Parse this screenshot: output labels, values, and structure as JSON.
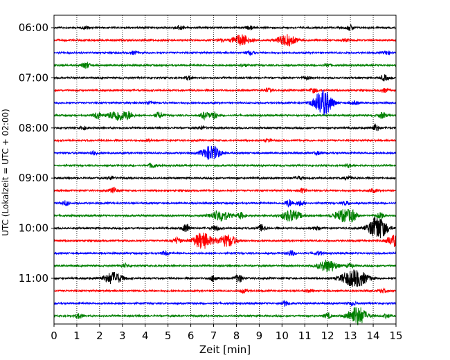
{
  "chart_data": {
    "type": "line",
    "title": "",
    "xlabel": "Zeit  [min]",
    "ylabel": "UTC (Lokalzeit = UTC + 02:00)",
    "xlim": [
      0,
      15
    ],
    "x_ticks": [
      "0",
      "1",
      "2",
      "3",
      "4",
      "5",
      "6",
      "7",
      "8",
      "9",
      "10",
      "11",
      "12",
      "13",
      "14",
      "15"
    ],
    "y_ticks": [
      "06:00",
      "07:00",
      "08:00",
      "09:00",
      "10:00",
      "11:00"
    ],
    "grid": "vertical dotted at each minute",
    "trace_interval_min": 15,
    "start_time": "06:00",
    "colors": [
      "#000000",
      "#ff0000",
      "#0000ff",
      "#008000"
    ],
    "traces": [
      {
        "start": "06:00",
        "color": "#000000",
        "events": [
          [
            1.4,
            0.2
          ],
          [
            5.5,
            0.35
          ],
          [
            8.6,
            0.25
          ],
          [
            13.0,
            0.45
          ]
        ]
      },
      {
        "start": "06:15",
        "color": "#ff0000",
        "events": [
          [
            8.2,
            0.9
          ],
          [
            10.2,
            0.95
          ],
          [
            7.3,
            0.25
          ],
          [
            12.8,
            0.2
          ]
        ]
      },
      {
        "start": "06:30",
        "color": "#0000ff",
        "events": [
          [
            3.5,
            0.25
          ],
          [
            8.6,
            0.3
          ],
          [
            14.6,
            0.3
          ]
        ]
      },
      {
        "start": "06:45",
        "color": "#008000",
        "events": [
          [
            1.4,
            0.55
          ],
          [
            8.3,
            0.25
          ],
          [
            12.0,
            0.25
          ]
        ]
      },
      {
        "start": "07:00",
        "color": "#000000",
        "events": [
          [
            5.9,
            0.3
          ],
          [
            11.1,
            0.25
          ],
          [
            14.5,
            0.45
          ]
        ]
      },
      {
        "start": "07:15",
        "color": "#ff0000",
        "events": [
          [
            9.4,
            0.3
          ],
          [
            11.4,
            0.35
          ],
          [
            14.5,
            0.3
          ]
        ]
      },
      {
        "start": "07:30",
        "color": "#0000ff",
        "events": [
          [
            11.8,
            2.2
          ],
          [
            4.2,
            0.3
          ],
          [
            13.2,
            0.3
          ]
        ]
      },
      {
        "start": "07:45",
        "color": "#008000",
        "events": [
          [
            1.9,
            0.6
          ],
          [
            2.8,
            0.9
          ],
          [
            3.3,
            0.5
          ],
          [
            4.6,
            0.5
          ],
          [
            6.6,
            0.55
          ],
          [
            7.0,
            0.6
          ],
          [
            14.4,
            0.5
          ]
        ]
      },
      {
        "start": "08:00",
        "color": "#000000",
        "events": [
          [
            1.3,
            0.25
          ],
          [
            6.5,
            0.3
          ],
          [
            14.1,
            0.55
          ]
        ]
      },
      {
        "start": "08:15",
        "color": "#ff0000",
        "events": [
          [
            4.1,
            0.2
          ],
          [
            9.4,
            0.2
          ]
        ]
      },
      {
        "start": "08:30",
        "color": "#0000ff",
        "events": [
          [
            6.9,
            1.2
          ],
          [
            1.7,
            0.35
          ],
          [
            11.6,
            0.25
          ]
        ]
      },
      {
        "start": "08:45",
        "color": "#008000",
        "events": [
          [
            4.3,
            0.4
          ],
          [
            12.9,
            0.25
          ]
        ]
      },
      {
        "start": "09:00",
        "color": "#000000",
        "events": [
          [
            2.5,
            0.3
          ],
          [
            10.7,
            0.3
          ],
          [
            12.9,
            0.3
          ]
        ]
      },
      {
        "start": "09:15",
        "color": "#ff0000",
        "events": [
          [
            2.6,
            0.45
          ],
          [
            10.9,
            0.35
          ],
          [
            14.0,
            0.3
          ]
        ]
      },
      {
        "start": "09:30",
        "color": "#0000ff",
        "events": [
          [
            0.5,
            0.4
          ],
          [
            10.3,
            0.6
          ],
          [
            10.8,
            0.45
          ],
          [
            12.8,
            0.3
          ]
        ]
      },
      {
        "start": "09:45",
        "color": "#008000",
        "events": [
          [
            7.3,
            0.95
          ],
          [
            8.2,
            0.5
          ],
          [
            10.4,
            1.0
          ],
          [
            12.7,
            1.0
          ],
          [
            13.1,
            0.6
          ],
          [
            14.3,
            0.5
          ]
        ]
      },
      {
        "start": "10:00",
        "color": "#000000",
        "events": [
          [
            5.8,
            0.75
          ],
          [
            7.1,
            0.4
          ],
          [
            9.1,
            0.55
          ],
          [
            14.2,
            2.0
          ],
          [
            11.5,
            0.3
          ]
        ]
      },
      {
        "start": "10:15",
        "color": "#ff0000",
        "events": [
          [
            5.4,
            0.5
          ],
          [
            6.5,
            1.4
          ],
          [
            7.6,
            1.0
          ],
          [
            15.0,
            1.0
          ]
        ]
      },
      {
        "start": "10:30",
        "color": "#0000ff",
        "events": [
          [
            4.9,
            0.35
          ],
          [
            10.4,
            0.45
          ],
          [
            11.6,
            0.3
          ]
        ]
      },
      {
        "start": "10:45",
        "color": "#008000",
        "events": [
          [
            12.0,
            1.0
          ],
          [
            13.0,
            0.35
          ],
          [
            3.1,
            0.3
          ]
        ]
      },
      {
        "start": "11:00",
        "color": "#000000",
        "events": [
          [
            2.6,
            1.0
          ],
          [
            7.0,
            0.5
          ],
          [
            8.1,
            0.7
          ],
          [
            12.9,
            0.9
          ],
          [
            13.4,
            1.1
          ]
        ]
      },
      {
        "start": "11:15",
        "color": "#ff0000",
        "events": [
          [
            8.3,
            0.3
          ],
          [
            11.2,
            0.2
          ],
          [
            14.4,
            0.3
          ]
        ]
      },
      {
        "start": "11:30",
        "color": "#0000ff",
        "events": [
          [
            10.1,
            0.45
          ],
          [
            13.1,
            0.3
          ]
        ]
      },
      {
        "start": "11:45",
        "color": "#008000",
        "events": [
          [
            1.1,
            0.4
          ],
          [
            13.3,
            1.6
          ],
          [
            12.0,
            0.4
          ],
          [
            14.6,
            0.3
          ]
        ]
      }
    ]
  }
}
